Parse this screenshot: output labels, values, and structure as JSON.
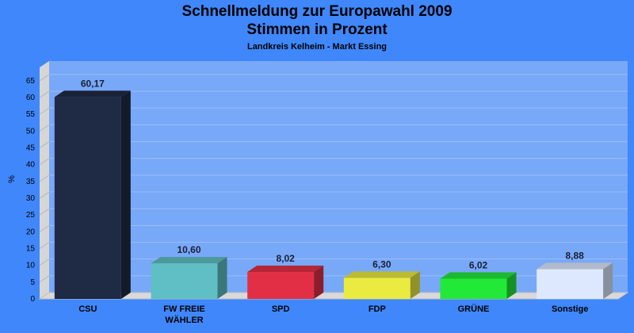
{
  "chart_data": {
    "type": "bar",
    "title": "Schnellmeldung zur Europawahl 2009",
    "title_line2": "Stimmen in Prozent",
    "subtitle": "Landkreis Kelheim - Markt Essing",
    "ylabel": "%",
    "ylim": [
      0,
      69
    ],
    "yticks": [
      0,
      5,
      10,
      15,
      20,
      25,
      30,
      35,
      40,
      45,
      50,
      55,
      60,
      65
    ],
    "grid": true,
    "categories": [
      [
        "CSU"
      ],
      [
        "FW FREIE",
        "WÄHLER"
      ],
      [
        "SPD"
      ],
      [
        "FDP"
      ],
      [
        "GRÜNE"
      ],
      [
        "Sonstige"
      ]
    ],
    "values": [
      60.17,
      10.6,
      8.02,
      6.3,
      6.02,
      8.88
    ],
    "value_labels": [
      "60,17",
      "10,60",
      "8,02",
      "6,30",
      "6,02",
      "8,88"
    ],
    "colors": [
      "#1f2a44",
      "#5fbfc4",
      "#e22f45",
      "#eaea40",
      "#22e838",
      "#dde8fe"
    ]
  }
}
